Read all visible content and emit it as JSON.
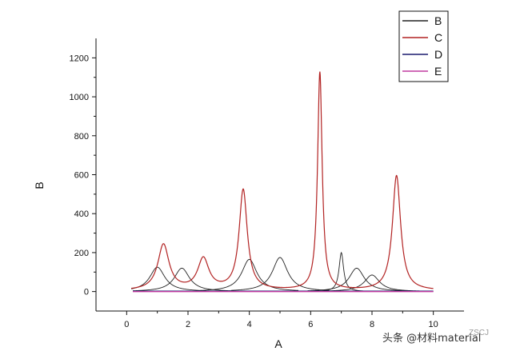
{
  "chart_data": {
    "type": "line",
    "xlabel": "A",
    "ylabel": "B",
    "xlim": [
      -1,
      11
    ],
    "ylim": [
      -100,
      1300
    ],
    "x_ticks": [
      0,
      2,
      4,
      6,
      8,
      10
    ],
    "y_ticks": [
      0,
      200,
      400,
      600,
      800,
      1000,
      1200
    ],
    "legend_position": "top-right",
    "grid": false,
    "series": [
      {
        "name": "B",
        "color": "#222222",
        "style": "component peaks (Lorentzian)",
        "peaks": [
          {
            "x": 1.0,
            "height": 125
          },
          {
            "x": 1.8,
            "height": 120
          },
          {
            "x": 4.0,
            "height": 165
          },
          {
            "x": 5.0,
            "height": 175
          },
          {
            "x": 7.0,
            "height": 200
          },
          {
            "x": 7.5,
            "height": 120
          },
          {
            "x": 8.0,
            "height": 85
          }
        ]
      },
      {
        "name": "C",
        "color": "#b22222",
        "style": "envelope / sum of peaks",
        "peaks": [
          {
            "x": 1.2,
            "height": 235
          },
          {
            "x": 2.5,
            "height": 160
          },
          {
            "x": 3.8,
            "height": 515
          },
          {
            "x": 6.3,
            "height": 1120
          },
          {
            "x": 8.8,
            "height": 590
          }
        ]
      },
      {
        "name": "D",
        "color": "#1a1a6e",
        "style": "baseline",
        "values_x": [
          0.2,
          10
        ],
        "values_y": [
          2,
          2
        ]
      },
      {
        "name": "E",
        "color": "#c03aa0",
        "style": "baseline",
        "values_x": [
          0.2,
          10
        ],
        "values_y": [
          0,
          0
        ]
      }
    ]
  },
  "watermark": "头条 @材料material",
  "watermark_extra": "ZSCJ"
}
